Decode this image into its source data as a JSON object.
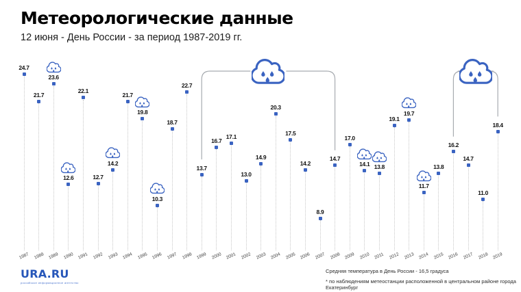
{
  "header": {
    "title": "Метеорологические данные",
    "subtitle": "12 июня - День России - за период 1987-2019 гг."
  },
  "chart_data": {
    "type": "lollipop",
    "title": "Метеорологические данные",
    "subtitle": "12 июня - День России - за период 1987-2019 гг.",
    "categories": [
      1987,
      1988,
      1989,
      1990,
      1991,
      1992,
      1993,
      1994,
      1995,
      1996,
      1997,
      1998,
      1999,
      2000,
      2001,
      2002,
      2003,
      2004,
      2005,
      2006,
      2007,
      2008,
      2009,
      2010,
      2011,
      2012,
      2013,
      2014,
      2015,
      2016,
      2017,
      2018,
      2019
    ],
    "values": [
      24.7,
      21.7,
      23.6,
      12.6,
      22.1,
      12.7,
      14.2,
      21.7,
      19.8,
      10.3,
      18.7,
      22.7,
      13.7,
      16.7,
      17.1,
      13.0,
      14.9,
      20.3,
      17.5,
      14.2,
      8.9,
      14.7,
      17.0,
      14.1,
      13.8,
      19.1,
      19.7,
      11.7,
      13.8,
      16.2,
      14.7,
      11.0,
      18.4
    ],
    "ylim": [
      8.9,
      24.7
    ],
    "rain_icon_years": [
      1989,
      1990,
      1993,
      1995,
      1996,
      2010,
      2011,
      2013,
      2014
    ],
    "rain_periods": [
      {
        "from": 1999,
        "to": 2008
      },
      {
        "from": 2016,
        "to": 2019
      }
    ],
    "marker_color": "#3a63c1",
    "cloud_color": "#3a63c1",
    "column_line_color": "#c7c7c7",
    "bracket_color": "#a7abb0",
    "grid": false,
    "legend": false
  },
  "footer": {
    "logo": "URA.RU",
    "logo_tagline": "российское информационное агентство",
    "note_line1": "Средняя температура в День России - 16,5 градуса",
    "note_line2": "* по наблюдениям метеостанции расположенной в центральном районе города Екатеринбург"
  }
}
